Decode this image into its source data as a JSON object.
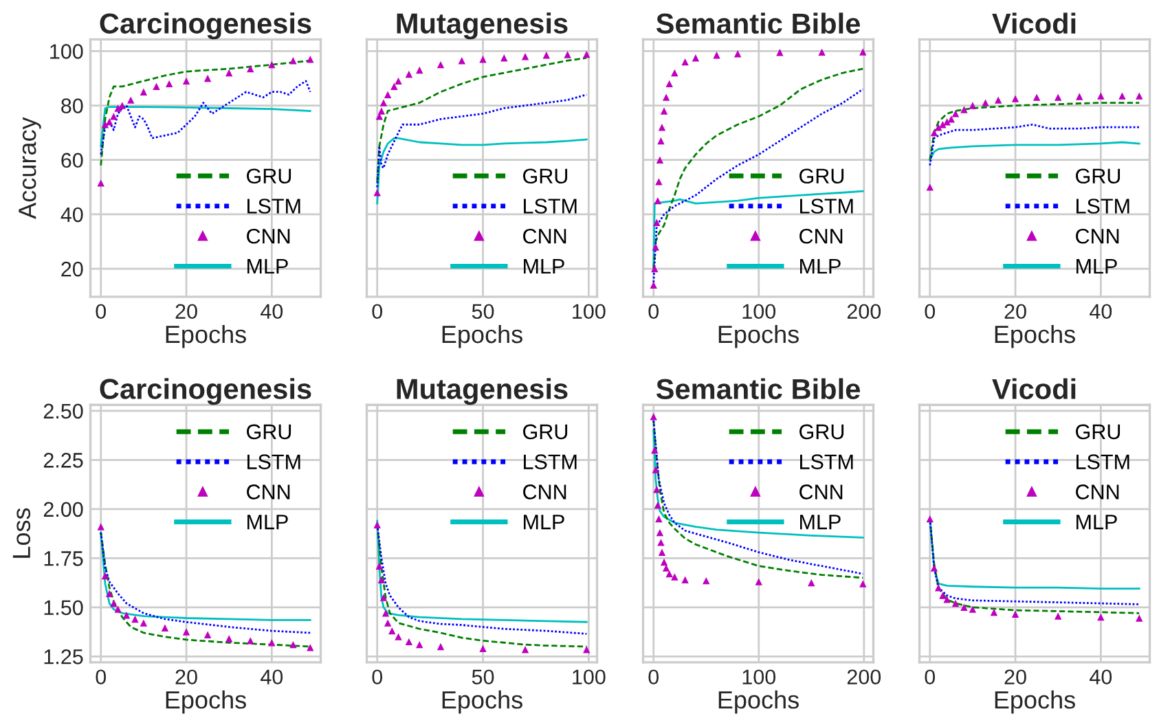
{
  "chart_data": [
    {
      "type": "line",
      "title": "Carcinogenesis",
      "xlabel": "Epochs",
      "ylabel": "Accuracy",
      "xlim": [
        -2.45,
        51.45
      ],
      "xticks": [
        0,
        20,
        40
      ],
      "ylim": [
        9.7,
        104.3
      ],
      "yticks": [
        20,
        40,
        60,
        80,
        100
      ],
      "grid": true,
      "legend": "bottom right",
      "series": [
        {
          "name": "GRU",
          "color": "#008000",
          "line_style": "dashed",
          "x": [
            0,
            1,
            2,
            3,
            5,
            10,
            15,
            20,
            30,
            40,
            49
          ],
          "values": [
            58,
            75,
            83,
            87,
            87,
            89,
            91,
            92.5,
            93.5,
            95,
            96.5
          ]
        },
        {
          "name": "LSTM",
          "color": "#0000ff",
          "line_style": "dotted",
          "x": [
            0,
            1,
            2,
            3,
            4,
            5,
            6,
            7,
            8,
            9,
            10,
            11,
            12,
            15,
            18,
            20,
            22,
            24,
            25,
            26,
            28,
            30,
            32,
            34,
            36,
            38,
            40,
            42,
            44,
            46,
            48,
            49
          ],
          "values": [
            62,
            72,
            74,
            71,
            77,
            79,
            80,
            76,
            72,
            76,
            75,
            72,
            68,
            69,
            70,
            73,
            76,
            81,
            79,
            77,
            79,
            81,
            83,
            85,
            84,
            83,
            85,
            85,
            84,
            87,
            89,
            85
          ]
        },
        {
          "name": "CNN",
          "type": "scatter",
          "color": "#bf00bf",
          "marker": "triangle",
          "x": [
            0,
            1,
            2,
            3,
            4,
            5,
            7,
            10,
            13,
            16,
            20,
            25,
            30,
            35,
            40,
            45,
            49
          ],
          "values": [
            51.5,
            73,
            74,
            76,
            79,
            80,
            82,
            85,
            87,
            88,
            89,
            90,
            92,
            93.5,
            95,
            96.5,
            97
          ]
        },
        {
          "name": "MLP",
          "color": "#00bfbf",
          "line_style": "solid",
          "x": [
            0,
            1,
            2,
            5,
            10,
            20,
            30,
            40,
            49
          ],
          "values": [
            65,
            79,
            79.5,
            79.5,
            79.5,
            79.3,
            79,
            78.7,
            78
          ]
        }
      ]
    },
    {
      "type": "line",
      "title": "Mutagenesis",
      "xlabel": "Epochs",
      "xlim": [
        -4.95,
        103.95
      ],
      "xticks": [
        0,
        50,
        100
      ],
      "ylim": [
        9.7,
        104.3
      ],
      "yticks": [
        20,
        40,
        60,
        80,
        100
      ],
      "tick_labels": "x",
      "grid": true,
      "legend": "bottom right",
      "series": [
        {
          "name": "GRU",
          "color": "#008000",
          "line_style": "dashed",
          "x": [
            0,
            1,
            3,
            5,
            10,
            20,
            30,
            40,
            50,
            60,
            70,
            80,
            90,
            99
          ],
          "values": [
            52,
            65,
            73,
            78,
            79,
            81,
            85,
            88,
            90.5,
            92,
            93.5,
            95,
            96.5,
            97.5
          ]
        },
        {
          "name": "LSTM",
          "color": "#0000ff",
          "line_style": "dotted",
          "x": [
            0,
            1,
            2,
            3,
            5,
            10,
            12,
            20,
            30,
            40,
            50,
            60,
            70,
            80,
            90,
            99
          ],
          "values": [
            50,
            65,
            58,
            57,
            62,
            70,
            73,
            73,
            75,
            76,
            77,
            79,
            80,
            81,
            82,
            84
          ]
        },
        {
          "name": "CNN",
          "type": "scatter",
          "color": "#bf00bf",
          "marker": "triangle",
          "x": [
            0,
            1,
            2,
            3,
            5,
            8,
            10,
            15,
            20,
            30,
            40,
            50,
            60,
            70,
            80,
            90,
            99
          ],
          "values": [
            48,
            76,
            78,
            81,
            84,
            87,
            89,
            91.5,
            93,
            95,
            96.5,
            97,
            97.5,
            98,
            98.5,
            98.7,
            98.8
          ]
        },
        {
          "name": "MLP",
          "color": "#00bfbf",
          "line_style": "solid",
          "x": [
            0,
            1,
            3,
            5,
            8,
            10,
            20,
            30,
            40,
            50,
            60,
            70,
            80,
            90,
            99
          ],
          "values": [
            44,
            58,
            63,
            66,
            68,
            68,
            66.5,
            66,
            65.5,
            65.5,
            66,
            66.3,
            66.5,
            67,
            67.5
          ]
        }
      ]
    },
    {
      "type": "line",
      "title": "Semantic Bible",
      "xlabel": "Epochs",
      "xlim": [
        -9.95,
        208.95
      ],
      "xticks": [
        0,
        100,
        200
      ],
      "ylim": [
        9.7,
        104.3
      ],
      "yticks": [
        20,
        40,
        60,
        80,
        100
      ],
      "tick_labels": "x",
      "grid": true,
      "legend": "bottom right",
      "series": [
        {
          "name": "GRU",
          "color": "#008000",
          "line_style": "dashed",
          "x": [
            0,
            2,
            5,
            10,
            15,
            20,
            25,
            30,
            40,
            50,
            60,
            80,
            100,
            120,
            140,
            160,
            180,
            199
          ],
          "values": [
            20,
            30,
            33,
            36,
            42,
            47,
            53,
            57,
            62,
            66,
            69,
            73,
            76,
            80,
            86,
            89.5,
            92,
            93.5
          ]
        },
        {
          "name": "LSTM",
          "color": "#0000ff",
          "line_style": "dotted",
          "x": [
            0,
            3,
            5,
            10,
            20,
            30,
            40,
            50,
            60,
            80,
            100,
            120,
            140,
            160,
            180,
            199
          ],
          "values": [
            15,
            36,
            37,
            40,
            43,
            45,
            47,
            50,
            53,
            58,
            62,
            67,
            72,
            77,
            81,
            86
          ]
        },
        {
          "name": "CNN",
          "type": "scatter",
          "color": "#bf00bf",
          "marker": "triangle",
          "x": [
            0,
            1,
            2,
            3,
            4,
            5,
            6,
            7,
            8,
            10,
            12,
            15,
            20,
            30,
            40,
            60,
            80,
            120,
            160,
            199
          ],
          "values": [
            14,
            20,
            28,
            37,
            45,
            52,
            60,
            67,
            72,
            78,
            83,
            88,
            92,
            96,
            97.5,
            98.5,
            99,
            99.5,
            99.6,
            99.7
          ]
        },
        {
          "name": "MLP",
          "color": "#00bfbf",
          "line_style": "solid",
          "x": [
            0,
            1,
            10,
            20,
            25,
            40,
            60,
            80,
            100,
            120,
            140,
            160,
            180,
            199
          ],
          "values": [
            20,
            44,
            44.5,
            45,
            45.5,
            44,
            44.5,
            45,
            46,
            46.5,
            47,
            47.5,
            48,
            48.5
          ]
        }
      ]
    },
    {
      "type": "line",
      "title": "Vicodi",
      "xlabel": "Epochs",
      "xlim": [
        -2.45,
        51.45
      ],
      "xticks": [
        0,
        20,
        40
      ],
      "ylim": [
        9.7,
        104.3
      ],
      "yticks": [
        20,
        40,
        60,
        80,
        100
      ],
      "tick_labels": "x",
      "grid": true,
      "legend": "bottom right",
      "series": [
        {
          "name": "GRU",
          "color": "#008000",
          "line_style": "dashed",
          "x": [
            0,
            1,
            2,
            4,
            6,
            10,
            15,
            20,
            30,
            40,
            49
          ],
          "values": [
            60,
            70,
            74,
            77,
            78,
            79,
            79.5,
            80,
            80.5,
            81,
            81
          ]
        },
        {
          "name": "LSTM",
          "color": "#0000ff",
          "line_style": "dotted",
          "x": [
            0,
            1,
            2,
            4,
            6,
            10,
            15,
            20,
            24,
            28,
            35,
            40,
            49
          ],
          "values": [
            58,
            68,
            69,
            70,
            71,
            71,
            71.5,
            72,
            73,
            71.5,
            71.5,
            72,
            72
          ]
        },
        {
          "name": "CNN",
          "type": "scatter",
          "color": "#bf00bf",
          "marker": "triangle",
          "x": [
            0,
            1,
            2,
            3,
            4,
            5,
            6,
            8,
            10,
            13,
            16,
            20,
            25,
            30,
            35,
            40,
            45,
            49
          ],
          "values": [
            50,
            70,
            72,
            73,
            74,
            75,
            77,
            78.5,
            80,
            81,
            82,
            82.5,
            83,
            83,
            83.3,
            83.5,
            83.5,
            83.5
          ]
        },
        {
          "name": "MLP",
          "color": "#00bfbf",
          "line_style": "solid",
          "x": [
            0,
            1,
            2,
            5,
            10,
            20,
            30,
            40,
            45,
            49
          ],
          "values": [
            60,
            63,
            64,
            64.5,
            65,
            65.5,
            65.5,
            66,
            66.5,
            66
          ]
        }
      ]
    },
    {
      "type": "line",
      "title": "Carcinogenesis",
      "xlabel": "Epochs",
      "ylabel": "Loss",
      "xlim": [
        -2.45,
        51.45
      ],
      "xticks": [
        0,
        20,
        40
      ],
      "ylim": [
        1.22,
        2.53
      ],
      "yticks": [
        {
          "value": 1.25,
          "label": "1.25"
        },
        {
          "value": 1.5,
          "label": "1.50"
        },
        {
          "value": 1.75,
          "label": "1.75"
        },
        {
          "value": 2.0,
          "label": "2.00"
        },
        {
          "value": 2.25,
          "label": "2.25"
        },
        {
          "value": 2.5,
          "label": "2.50"
        }
      ],
      "grid": true,
      "legend": "top right",
      "series": [
        {
          "name": "GRU",
          "color": "#008000",
          "line_style": "dashed",
          "x": [
            0,
            1,
            2,
            3,
            5,
            7,
            10,
            15,
            20,
            30,
            40,
            49
          ],
          "values": [
            1.88,
            1.72,
            1.6,
            1.53,
            1.45,
            1.4,
            1.37,
            1.35,
            1.335,
            1.32,
            1.31,
            1.3
          ]
        },
        {
          "name": "LSTM",
          "color": "#0000ff",
          "line_style": "dotted",
          "x": [
            0,
            1,
            2,
            4,
            6,
            10,
            15,
            20,
            30,
            40,
            49
          ],
          "values": [
            1.88,
            1.7,
            1.63,
            1.57,
            1.52,
            1.47,
            1.44,
            1.425,
            1.4,
            1.38,
            1.37
          ]
        },
        {
          "name": "CNN",
          "type": "scatter",
          "color": "#bf00bf",
          "marker": "triangle",
          "x": [
            0,
            1,
            2,
            3,
            4,
            6,
            8,
            10,
            15,
            20,
            25,
            30,
            35,
            40,
            45,
            49
          ],
          "values": [
            1.91,
            1.66,
            1.57,
            1.52,
            1.49,
            1.46,
            1.44,
            1.42,
            1.395,
            1.375,
            1.36,
            1.34,
            1.33,
            1.32,
            1.31,
            1.295
          ]
        },
        {
          "name": "MLP",
          "color": "#00bfbf",
          "line_style": "solid",
          "x": [
            0,
            1,
            2,
            3,
            5,
            10,
            20,
            30,
            40,
            49
          ],
          "values": [
            1.88,
            1.62,
            1.52,
            1.49,
            1.47,
            1.455,
            1.445,
            1.44,
            1.435,
            1.435
          ]
        }
      ]
    },
    {
      "type": "line",
      "title": "Mutagenesis",
      "xlabel": "Epochs",
      "xlim": [
        -4.95,
        103.95
      ],
      "xticks": [
        0,
        50,
        100
      ],
      "ylim": [
        1.22,
        2.53
      ],
      "yticks": [
        1.25,
        1.5,
        1.75,
        2.0,
        2.25,
        2.5
      ],
      "tick_labels": "x",
      "grid": true,
      "legend": "top right",
      "series": [
        {
          "name": "GRU",
          "color": "#008000",
          "line_style": "dashed",
          "x": [
            0,
            2,
            4,
            6,
            10,
            20,
            30,
            40,
            50,
            60,
            70,
            80,
            99
          ],
          "values": [
            1.92,
            1.7,
            1.55,
            1.47,
            1.42,
            1.39,
            1.37,
            1.345,
            1.33,
            1.32,
            1.31,
            1.305,
            1.3
          ]
        },
        {
          "name": "LSTM",
          "color": "#0000ff",
          "line_style": "dotted",
          "x": [
            0,
            2,
            4,
            6,
            10,
            15,
            20,
            30,
            40,
            50,
            60,
            70,
            80,
            99
          ],
          "values": [
            1.92,
            1.75,
            1.62,
            1.56,
            1.5,
            1.45,
            1.43,
            1.415,
            1.41,
            1.4,
            1.39,
            1.385,
            1.38,
            1.365
          ]
        },
        {
          "name": "CNN",
          "type": "scatter",
          "color": "#bf00bf",
          "marker": "triangle",
          "x": [
            0,
            1,
            2,
            3,
            4,
            5,
            7,
            10,
            15,
            20,
            30,
            50,
            70,
            99
          ],
          "values": [
            1.92,
            1.71,
            1.64,
            1.55,
            1.47,
            1.42,
            1.38,
            1.35,
            1.325,
            1.31,
            1.3,
            1.29,
            1.285,
            1.285
          ]
        },
        {
          "name": "MLP",
          "color": "#00bfbf",
          "line_style": "solid",
          "x": [
            0,
            1,
            2,
            3,
            5,
            10,
            20,
            40,
            60,
            80,
            99
          ],
          "values": [
            1.94,
            1.7,
            1.55,
            1.5,
            1.47,
            1.46,
            1.45,
            1.44,
            1.435,
            1.43,
            1.425
          ]
        }
      ]
    },
    {
      "type": "line",
      "title": "Semantic Bible",
      "xlabel": "Epochs",
      "xlim": [
        -9.95,
        208.95
      ],
      "xticks": [
        0,
        100,
        200
      ],
      "ylim": [
        1.22,
        2.53
      ],
      "yticks": [
        1.25,
        1.5,
        1.75,
        2.0,
        2.25,
        2.5
      ],
      "tick_labels": "x",
      "grid": true,
      "legend": "top right",
      "series": [
        {
          "name": "GRU",
          "color": "#008000",
          "line_style": "dashed",
          "x": [
            0,
            3,
            6,
            10,
            15,
            20,
            30,
            40,
            50,
            70,
            100,
            130,
            160,
            199
          ],
          "values": [
            2.45,
            2.25,
            2.1,
            1.98,
            1.93,
            1.9,
            1.85,
            1.82,
            1.8,
            1.76,
            1.71,
            1.685,
            1.665,
            1.65
          ]
        },
        {
          "name": "LSTM",
          "color": "#0000ff",
          "line_style": "dotted",
          "x": [
            0,
            5,
            10,
            15,
            20,
            30,
            50,
            70,
            100,
            130,
            160,
            199
          ],
          "values": [
            2.45,
            2.15,
            2.03,
            1.97,
            1.93,
            1.89,
            1.86,
            1.83,
            1.78,
            1.74,
            1.71,
            1.67
          ]
        },
        {
          "name": "CNN",
          "type": "scatter",
          "color": "#bf00bf",
          "marker": "triangle",
          "x": [
            0,
            1,
            2,
            3,
            4,
            5,
            6,
            7,
            8,
            10,
            12,
            15,
            20,
            30,
            50,
            100,
            150,
            199
          ],
          "values": [
            2.47,
            2.3,
            2.2,
            2.1,
            2.02,
            1.95,
            1.88,
            1.83,
            1.78,
            1.73,
            1.7,
            1.67,
            1.655,
            1.64,
            1.635,
            1.63,
            1.625,
            1.62
          ]
        },
        {
          "name": "MLP",
          "color": "#00bfbf",
          "line_style": "solid",
          "x": [
            0,
            2,
            4,
            6,
            10,
            20,
            40,
            60,
            100,
            150,
            199
          ],
          "values": [
            2.4,
            2.15,
            2.05,
            1.99,
            1.96,
            1.93,
            1.91,
            1.895,
            1.88,
            1.865,
            1.855
          ]
        }
      ]
    },
    {
      "type": "line",
      "title": "Vicodi",
      "xlabel": "Epochs",
      "xlim": [
        -2.45,
        51.45
      ],
      "xticks": [
        0,
        20,
        40
      ],
      "ylim": [
        1.22,
        2.53
      ],
      "yticks": [
        1.25,
        1.5,
        1.75,
        2.0,
        2.25,
        2.5
      ],
      "tick_labels": "x",
      "grid": true,
      "legend": "top right",
      "series": [
        {
          "name": "GRU",
          "color": "#008000",
          "line_style": "dashed",
          "x": [
            0,
            1,
            2,
            4,
            6,
            10,
            20,
            30,
            40,
            49
          ],
          "values": [
            1.95,
            1.72,
            1.6,
            1.54,
            1.52,
            1.5,
            1.485,
            1.48,
            1.475,
            1.47
          ]
        },
        {
          "name": "LSTM",
          "color": "#0000ff",
          "line_style": "dotted",
          "x": [
            0,
            1,
            2,
            4,
            6,
            10,
            20,
            30,
            40,
            49
          ],
          "values": [
            1.95,
            1.7,
            1.6,
            1.56,
            1.545,
            1.535,
            1.53,
            1.525,
            1.52,
            1.515
          ]
        },
        {
          "name": "CNN",
          "type": "scatter",
          "color": "#bf00bf",
          "marker": "triangle",
          "x": [
            0,
            1,
            2,
            3,
            4,
            6,
            8,
            10,
            15,
            20,
            30,
            40,
            49
          ],
          "values": [
            1.95,
            1.7,
            1.6,
            1.56,
            1.54,
            1.52,
            1.5,
            1.49,
            1.475,
            1.465,
            1.455,
            1.45,
            1.445
          ]
        },
        {
          "name": "MLP",
          "color": "#00bfbf",
          "line_style": "solid",
          "x": [
            0,
            1,
            2,
            4,
            10,
            20,
            30,
            40,
            49
          ],
          "values": [
            1.95,
            1.7,
            1.62,
            1.61,
            1.605,
            1.6,
            1.6,
            1.595,
            1.595
          ]
        }
      ]
    }
  ]
}
